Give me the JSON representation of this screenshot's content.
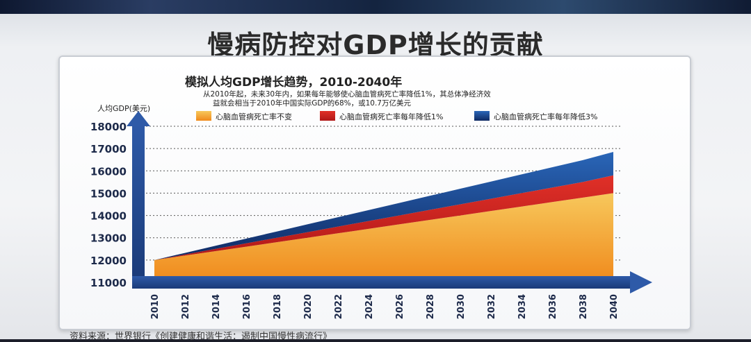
{
  "slide": {
    "title": "慢病防控对GDP增长的贡献",
    "source": "资料来源：世界银行《创建健康和谐生活：遏制中国慢性病流行》"
  },
  "chart_data": {
    "type": "area",
    "title": "模拟人均GDP增长趋势，2010-2040年",
    "subtitle_lines": [
      "从2010年起，未来30年内，如果每年能够使心脑血管病死亡率降低1%，其总体净经济效",
      "益就会相当于2010年中国实际GDP的68%，或10.7万亿美元"
    ],
    "ylabel": "人均GDP(美元)",
    "xlabel": "",
    "ylim": [
      11000,
      18000
    ],
    "yticks": [
      11000,
      12000,
      13000,
      14000,
      15000,
      16000,
      17000,
      18000
    ],
    "x": [
      2010,
      2012,
      2014,
      2016,
      2018,
      2020,
      2022,
      2024,
      2026,
      2028,
      2030,
      2032,
      2034,
      2036,
      2038,
      2040
    ],
    "grid": true,
    "legend_position": "top",
    "series": [
      {
        "name": "心脑血管病死亡率不变",
        "color": "#f0a030",
        "values": [
          12000,
          12200,
          12400,
          12600,
          12800,
          13000,
          13200,
          13400,
          13600,
          13800,
          14000,
          14200,
          14400,
          14600,
          14800,
          15000
        ]
      },
      {
        "name": "心脑血管病死亡率每年降低1%",
        "color": "#c8201c",
        "values": [
          12000,
          12250,
          12500,
          12750,
          13000,
          13250,
          13500,
          13750,
          14000,
          14250,
          14500,
          14750,
          15000,
          15250,
          15500,
          15800
        ]
      },
      {
        "name": "心脑血管病死亡率每年降低3%",
        "color": "#1c3f86",
        "values": [
          12000,
          12320,
          12640,
          12960,
          13280,
          13600,
          13920,
          14240,
          14560,
          14880,
          15200,
          15520,
          15840,
          16160,
          16480,
          16850
        ]
      }
    ]
  }
}
